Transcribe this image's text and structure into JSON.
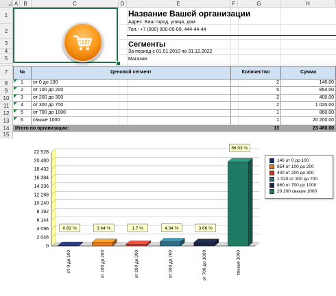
{
  "columns": [
    "A",
    "B",
    "C",
    "D",
    "E",
    "F",
    "G",
    "H"
  ],
  "rows": [
    "1",
    "2",
    "3",
    "4",
    "5",
    "6",
    "7",
    "8",
    "9",
    "10",
    "11",
    "12",
    "13",
    "14",
    "15"
  ],
  "org": {
    "name": "Название Вашей организации",
    "address": "Адрес: Ваш город, улица, дом",
    "phone": "Тел.: +7 (000) 000-00-00, 444-44-44"
  },
  "report": {
    "title": "Сегменты",
    "period": "За период с 01.01.2010 по 31.12.2022",
    "shop": "Магазин:"
  },
  "table": {
    "headers": {
      "num": "№",
      "segment": "Ценовой сегмент",
      "qty": "Количество",
      "sum": "Сумма"
    },
    "rows": [
      {
        "num": "1",
        "segment": "от 0 до 100",
        "qty": "2",
        "sum": "146.00"
      },
      {
        "num": "2",
        "segment": "от 100 до 200",
        "qty": "5",
        "sum": "854.00"
      },
      {
        "num": "3",
        "segment": "от 200 до 300",
        "qty": "2",
        "sum": "400.00"
      },
      {
        "num": "4",
        "segment": "от 300 до 700",
        "qty": "2",
        "sum": "1 020.00"
      },
      {
        "num": "5",
        "segment": "от 700 до 1000",
        "qty": "1",
        "sum": "860.00"
      },
      {
        "num": "6",
        "segment": "свыше 1000",
        "qty": "1",
        "sum": "20 200.00"
      }
    ],
    "total": {
      "label": "Итого по организации:",
      "qty": "13",
      "sum": "23 480.00"
    }
  },
  "chart_data": {
    "type": "bar",
    "categories": [
      "от 0 до 100",
      "от 100 до 200",
      "от 200 до 300",
      "от 300 до 700",
      "от 700 до 1000",
      "свыше 1000"
    ],
    "values": [
      146,
      854,
      400,
      1020,
      860,
      20200
    ],
    "data_labels": [
      "0.62 %",
      "3.64 %",
      "1.7 %",
      "4.34 %",
      "3.66 %",
      "86.03 %"
    ],
    "colors": [
      "#1f2f6e",
      "#e07a1e",
      "#c0392b",
      "#2e6f86",
      "#1b2340",
      "#1e7a62"
    ],
    "ylim": [
      0,
      22528
    ],
    "yticks": [
      "0",
      "2 048",
      "4 096",
      "6 144",
      "8 192",
      "10 240",
      "12 288",
      "14 336",
      "16 384",
      "18 432",
      "20 480",
      "22 528"
    ],
    "legend": [
      "146  от 0 до 100",
      "854  от 100 до 200",
      "400  от 200 до 300",
      "1 020  от 300 до 700",
      "860  от 700 до 1000",
      "20 200  свыше 1000"
    ],
    "legend_position": "right",
    "grid": true
  }
}
